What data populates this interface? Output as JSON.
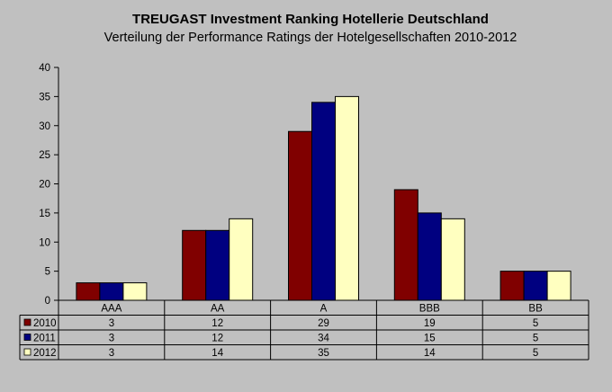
{
  "chart_data": {
    "type": "bar",
    "title": "TREUGAST Investment Ranking Hotellerie Deutschland",
    "subtitle": "Verteilung der Performance Ratings der Hotelgesellschaften 2010-2012",
    "categories": [
      "AAA",
      "AA",
      "A",
      "BBB",
      "BB"
    ],
    "series": [
      {
        "name": "2010",
        "color": "#800000",
        "values": [
          3,
          12,
          29,
          19,
          5
        ]
      },
      {
        "name": "2011",
        "color": "#000080",
        "values": [
          3,
          12,
          34,
          15,
          5
        ]
      },
      {
        "name": "2012",
        "color": "#ffffc0",
        "values": [
          3,
          14,
          35,
          14,
          5
        ]
      }
    ],
    "ylim": [
      0,
      40
    ],
    "yticks": [
      0,
      5,
      10,
      15,
      20,
      25,
      30,
      35,
      40
    ],
    "grid": false,
    "legend": "data-table",
    "data_table": true
  }
}
